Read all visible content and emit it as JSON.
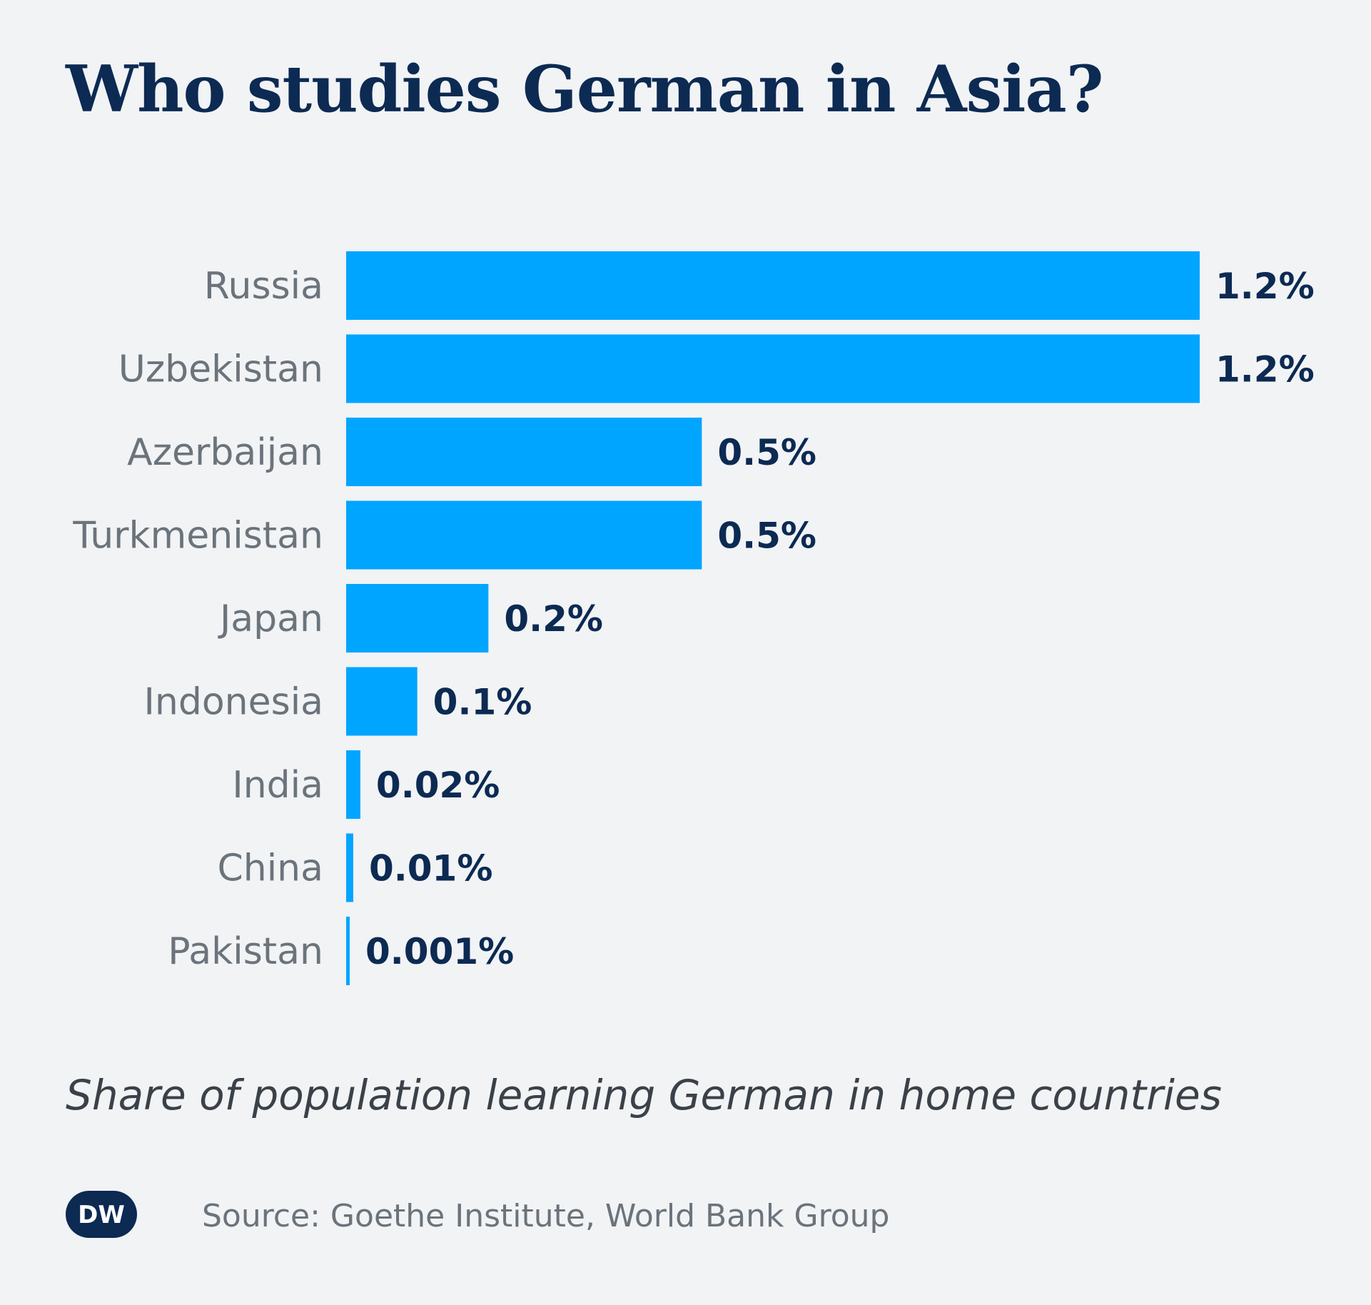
{
  "header": {
    "title": "Who studies German in Asia?"
  },
  "footer": {
    "subtitle": "Share of population learning German in home countries",
    "source": "Source: Goethe Institute, World Bank Group",
    "logo_text": "DW"
  },
  "colors": {
    "bar": "#00a5ff",
    "background": "#f1f3f5",
    "title": "#0c2a52"
  },
  "chart_data": {
    "type": "bar",
    "orientation": "horizontal",
    "title": "Who studies German in Asia?",
    "subtitle": "Share of population learning German in home countries",
    "categories": [
      "Russia",
      "Uzbekistan",
      "Azerbaijan",
      "Turkmenistan",
      "Japan",
      "Indonesia",
      "India",
      "China",
      "Pakistan"
    ],
    "values": [
      1.2,
      1.2,
      0.5,
      0.5,
      0.2,
      0.1,
      0.02,
      0.01,
      0.001
    ],
    "labels": [
      "1.2%",
      "1.2%",
      "0.5%",
      "0.5%",
      "0.2%",
      "0.1%",
      "0.02%",
      "0.01%",
      "0.001%"
    ],
    "unit": "%",
    "grid": false,
    "axes_visible": false,
    "legend": "none"
  }
}
